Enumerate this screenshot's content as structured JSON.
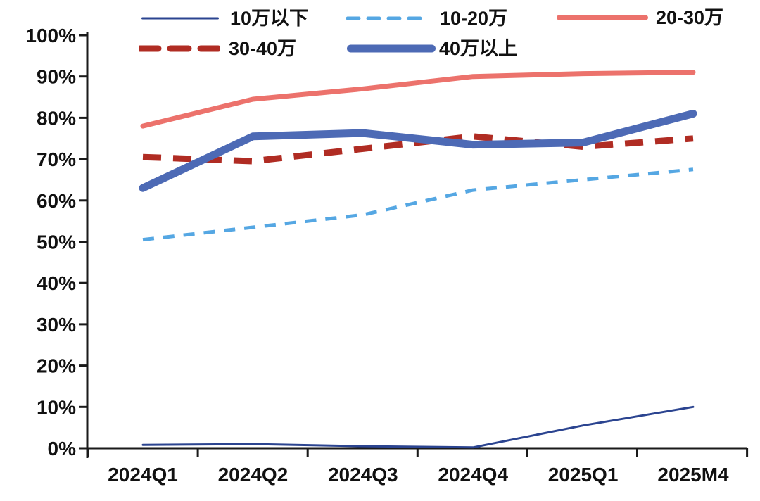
{
  "chart_data": {
    "type": "line",
    "title": "",
    "categories": [
      "2024Q1",
      "2024Q2",
      "2024Q3",
      "2024Q4",
      "2025Q1",
      "2025M4"
    ],
    "series": [
      {
        "name": "10万以下",
        "values": [
          0.8,
          1.0,
          0.5,
          0.2,
          5.5,
          10.0
        ]
      },
      {
        "name": "10-20万",
        "values": [
          50.5,
          53.5,
          56.5,
          62.5,
          65.0,
          67.5
        ]
      },
      {
        "name": "20-30万",
        "values": [
          78.0,
          84.5,
          87.0,
          90.0,
          90.7,
          91.0
        ]
      },
      {
        "name": "30-40万",
        "values": [
          70.5,
          69.5,
          72.5,
          75.5,
          73.0,
          75.0
        ]
      },
      {
        "name": "40万以上",
        "values": [
          63.0,
          75.5,
          76.3,
          73.5,
          74.0,
          81.0
        ]
      }
    ],
    "series_styles": [
      {
        "color": "#2b4490",
        "stroke_width": 3,
        "dash": ""
      },
      {
        "color": "#55a7e3",
        "stroke_width": 5,
        "dash": "16 13"
      },
      {
        "color": "#ec726c",
        "stroke_width": 7,
        "dash": ""
      },
      {
        "color": "#b02c23",
        "stroke_width": 9,
        "dash": "26 17"
      },
      {
        "color": "#4d6ab5",
        "stroke_width": 11,
        "dash": ""
      }
    ],
    "xlabel": "",
    "ylabel": "",
    "ylim": [
      0,
      100
    ],
    "ytick_step": 10,
    "ytick_labels": [
      "0%",
      "10%",
      "20%",
      "30%",
      "40%",
      "50%",
      "60%",
      "70%",
      "80%",
      "90%",
      "100%"
    ],
    "grid": false,
    "legend_position": "top",
    "axis_color": "#1a1a1a"
  }
}
